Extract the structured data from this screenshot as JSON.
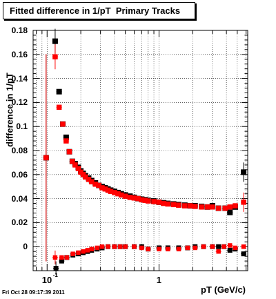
{
  "title": "Fitted difference in 1/pT  Primary Tracks",
  "timestamp": "Fri Oct 28 09:17:39 2011",
  "chart_data": {
    "type": "scatter",
    "xlabel": "pT (GeV/c)",
    "ylabel": "difference in 1/pT",
    "xscale": "log",
    "xlim": [
      0.075,
      6.2
    ],
    "ylim": [
      -0.02,
      0.18
    ],
    "yticks": [
      0,
      0.02,
      0.04,
      0.06,
      0.08,
      0.1,
      0.12,
      0.14,
      0.16,
      0.18
    ],
    "ytick_labels": [
      "0",
      "0.02",
      "0.04",
      "0.06",
      "0.08",
      "0.1",
      "0.12",
      "0.14",
      "0.16",
      "0.18"
    ],
    "xtick_labels": [
      {
        "value": 0.1,
        "base": "10",
        "exp": "-1"
      },
      {
        "value": 1,
        "base": "1",
        "exp": ""
      }
    ],
    "grid": true,
    "series": [
      {
        "color": "#000000",
        "upper": [
          [
            0.098,
            0.074
          ],
          [
            0.118,
            0.171
          ],
          [
            0.128,
            0.129
          ],
          [
            0.138,
            0.102
          ],
          [
            0.148,
            0.091
          ],
          [
            0.158,
            0.079
          ],
          [
            0.168,
            0.071
          ],
          [
            0.178,
            0.069
          ],
          [
            0.19,
            0.066
          ],
          [
            0.2,
            0.063
          ],
          [
            0.21,
            0.061
          ],
          [
            0.22,
            0.059
          ],
          [
            0.235,
            0.057
          ],
          [
            0.25,
            0.055
          ],
          [
            0.27,
            0.053
          ],
          [
            0.29,
            0.051
          ],
          [
            0.31,
            0.05
          ],
          [
            0.33,
            0.049
          ],
          [
            0.35,
            0.048
          ],
          [
            0.37,
            0.047
          ],
          [
            0.4,
            0.046
          ],
          [
            0.43,
            0.045
          ],
          [
            0.46,
            0.044
          ],
          [
            0.5,
            0.043
          ],
          [
            0.55,
            0.042
          ],
          [
            0.6,
            0.041
          ],
          [
            0.65,
            0.04
          ],
          [
            0.7,
            0.0395
          ],
          [
            0.75,
            0.039
          ],
          [
            0.8,
            0.0385
          ],
          [
            0.9,
            0.038
          ],
          [
            1.0,
            0.037
          ],
          [
            1.1,
            0.0365
          ],
          [
            1.2,
            0.036
          ],
          [
            1.35,
            0.0355
          ],
          [
            1.5,
            0.035
          ],
          [
            1.7,
            0.0345
          ],
          [
            1.9,
            0.034
          ],
          [
            2.1,
            0.034
          ],
          [
            2.4,
            0.0335
          ],
          [
            2.7,
            0.033
          ],
          [
            3.0,
            0.034
          ],
          [
            3.4,
            0.032
          ],
          [
            3.9,
            0.032
          ],
          [
            4.3,
            0.0285
          ],
          [
            4.8,
            0.033
          ],
          [
            5.7,
            0.062
          ]
        ],
        "lower": [
          [
            0.12,
            -0.018
          ],
          [
            0.135,
            -0.012
          ],
          [
            0.15,
            -0.009
          ],
          [
            0.17,
            -0.007
          ],
          [
            0.19,
            -0.006
          ],
          [
            0.21,
            -0.005
          ],
          [
            0.23,
            -0.004
          ],
          [
            0.25,
            -0.003
          ],
          [
            0.28,
            -0.002
          ],
          [
            0.31,
            -0.001
          ],
          [
            0.35,
            0.0
          ],
          [
            0.4,
            0.0
          ],
          [
            0.45,
            0.0
          ],
          [
            0.5,
            0.0
          ],
          [
            0.6,
            0.0
          ],
          [
            0.7,
            0.0
          ],
          [
            0.8,
            -0.002
          ],
          [
            1.0,
            -0.001
          ],
          [
            1.2,
            -0.001
          ],
          [
            1.5,
            -0.001
          ],
          [
            1.8,
            -0.001
          ],
          [
            2.1,
            0.0
          ],
          [
            2.5,
            0.0
          ],
          [
            3.0,
            0.0
          ],
          [
            3.4,
            0.0
          ],
          [
            3.8,
            0.0
          ],
          [
            4.3,
            -0.003
          ],
          [
            4.8,
            -0.002
          ],
          [
            5.7,
            -0.006
          ]
        ]
      },
      {
        "color": "#ff0000",
        "upper": [
          [
            0.098,
            0.074
          ],
          [
            0.118,
            0.158
          ],
          [
            0.128,
            0.116
          ],
          [
            0.138,
            0.102
          ],
          [
            0.148,
            0.088
          ],
          [
            0.158,
            0.079
          ],
          [
            0.168,
            0.071
          ],
          [
            0.178,
            0.068
          ],
          [
            0.19,
            0.065
          ],
          [
            0.2,
            0.062
          ],
          [
            0.21,
            0.06
          ],
          [
            0.22,
            0.058
          ],
          [
            0.235,
            0.056
          ],
          [
            0.25,
            0.054
          ],
          [
            0.27,
            0.052
          ],
          [
            0.29,
            0.051
          ],
          [
            0.31,
            0.049
          ],
          [
            0.33,
            0.048
          ],
          [
            0.35,
            0.047
          ],
          [
            0.37,
            0.046
          ],
          [
            0.4,
            0.045
          ],
          [
            0.43,
            0.044
          ],
          [
            0.46,
            0.043
          ],
          [
            0.5,
            0.042
          ],
          [
            0.55,
            0.041
          ],
          [
            0.6,
            0.0405
          ],
          [
            0.65,
            0.04
          ],
          [
            0.7,
            0.039
          ],
          [
            0.75,
            0.0385
          ],
          [
            0.8,
            0.038
          ],
          [
            0.9,
            0.0375
          ],
          [
            1.0,
            0.037
          ],
          [
            1.1,
            0.036
          ],
          [
            1.2,
            0.0355
          ],
          [
            1.35,
            0.035
          ],
          [
            1.5,
            0.0345
          ],
          [
            1.7,
            0.034
          ],
          [
            1.9,
            0.034
          ],
          [
            2.1,
            0.0335
          ],
          [
            2.4,
            0.033
          ],
          [
            2.7,
            0.033
          ],
          [
            3.0,
            0.033
          ],
          [
            3.4,
            0.032
          ],
          [
            3.9,
            0.032
          ],
          [
            4.3,
            0.033
          ],
          [
            4.8,
            0.034
          ],
          [
            5.7,
            0.037
          ]
        ],
        "lower": [
          [
            0.118,
            -0.009
          ],
          [
            0.135,
            -0.009
          ],
          [
            0.15,
            -0.009
          ],
          [
            0.17,
            -0.006
          ],
          [
            0.19,
            -0.005
          ],
          [
            0.21,
            -0.004
          ],
          [
            0.23,
            -0.003
          ],
          [
            0.25,
            -0.002
          ],
          [
            0.28,
            -0.001
          ],
          [
            0.31,
            0.0
          ],
          [
            0.35,
            0.0
          ],
          [
            0.4,
            0.0
          ],
          [
            0.45,
            0.0
          ],
          [
            0.5,
            0.0
          ],
          [
            0.6,
            0.0
          ],
          [
            0.7,
            -0.001
          ],
          [
            0.8,
            -0.002
          ],
          [
            1.0,
            -0.002
          ],
          [
            1.2,
            -0.002
          ],
          [
            1.5,
            -0.002
          ],
          [
            1.8,
            -0.001
          ],
          [
            2.1,
            -0.001
          ],
          [
            2.5,
            0.0
          ],
          [
            3.0,
            0.0
          ],
          [
            3.4,
            -0.004
          ],
          [
            3.8,
            0.0
          ],
          [
            4.3,
            0.001
          ],
          [
            4.8,
            -0.001
          ],
          [
            5.7,
            0.0
          ]
        ]
      }
    ]
  }
}
